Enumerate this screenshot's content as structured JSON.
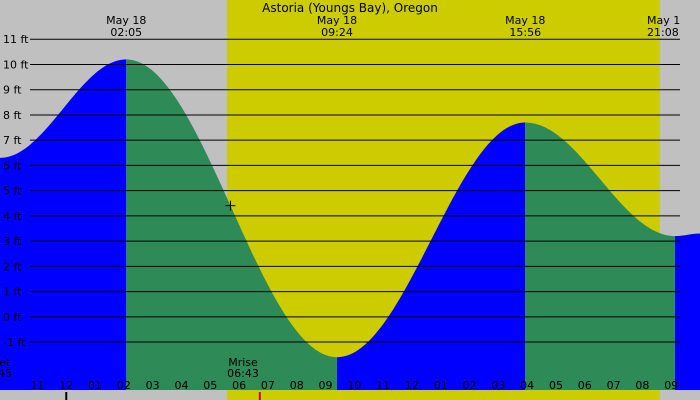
{
  "title": "Astoria (Youngs Bay), Oregon",
  "colors": {
    "night": "#c0c0c0",
    "day": "#cccc00",
    "rising": "#0000ff",
    "falling": "#2e8b57",
    "grid": "#000000",
    "moon_marker": "#cc0000"
  },
  "extremes": [
    {
      "date": "May 18",
      "time": "02:05",
      "height_ft": 10.2,
      "type": "high"
    },
    {
      "date": "May 18",
      "time": "09:24",
      "height_ft": -1.6,
      "type": "low"
    },
    {
      "date": "May 18",
      "time": "15:56",
      "height_ft": 7.7,
      "type": "high"
    },
    {
      "date": "May 1",
      "time": "21:08",
      "height_ft": 3.2,
      "type": "low"
    }
  ],
  "sun_moon": {
    "sunset_label": "et",
    "sunset_time": "45",
    "moonrise_label": "Mrise",
    "moonrise_time": "06:43"
  },
  "chart_data": {
    "type": "area",
    "title": "Astoria (Youngs Bay), Oregon",
    "x_unit": "hour of day (May 18)",
    "xlim": [
      -2.3,
      22.0
    ],
    "ylim": [
      -2.9,
      12.0
    ],
    "y_ticks": [
      -1,
      0,
      1,
      2,
      3,
      4,
      5,
      6,
      7,
      8,
      9,
      10,
      11
    ],
    "y_tick_labels": [
      "-1 ft",
      "0 ft",
      "1 ft",
      "2 ft",
      "3 ft",
      "4 ft",
      "5 ft",
      "6 ft",
      "7 ft",
      "8 ft",
      "9 ft",
      "10 ft",
      "11 ft"
    ],
    "x_ticks": [
      -1,
      0,
      1,
      2,
      3,
      4,
      5,
      6,
      7,
      8,
      9,
      10,
      11,
      12,
      13,
      14,
      15,
      16,
      17,
      18,
      19,
      20,
      21
    ],
    "x_tick_labels": [
      "11",
      "12",
      "01",
      "02",
      "03",
      "04",
      "05",
      "06",
      "07",
      "08",
      "09",
      "10",
      "11",
      "12",
      "01",
      "02",
      "03",
      "04",
      "05",
      "06",
      "07",
      "08",
      "09"
    ],
    "daylight": [
      5.58,
      20.6
    ],
    "moonrise": 6.72,
    "current_time": 5.7,
    "series": [
      {
        "values": [
          [
            -2.3,
            6.3
          ],
          [
            2.083,
            10.2
          ],
          [
            9.4,
            -1.6
          ],
          [
            15.933,
            7.7
          ],
          [
            21.133,
            3.2
          ],
          [
            22.0,
            3.3
          ]
        ]
      }
    ],
    "grid": true
  }
}
